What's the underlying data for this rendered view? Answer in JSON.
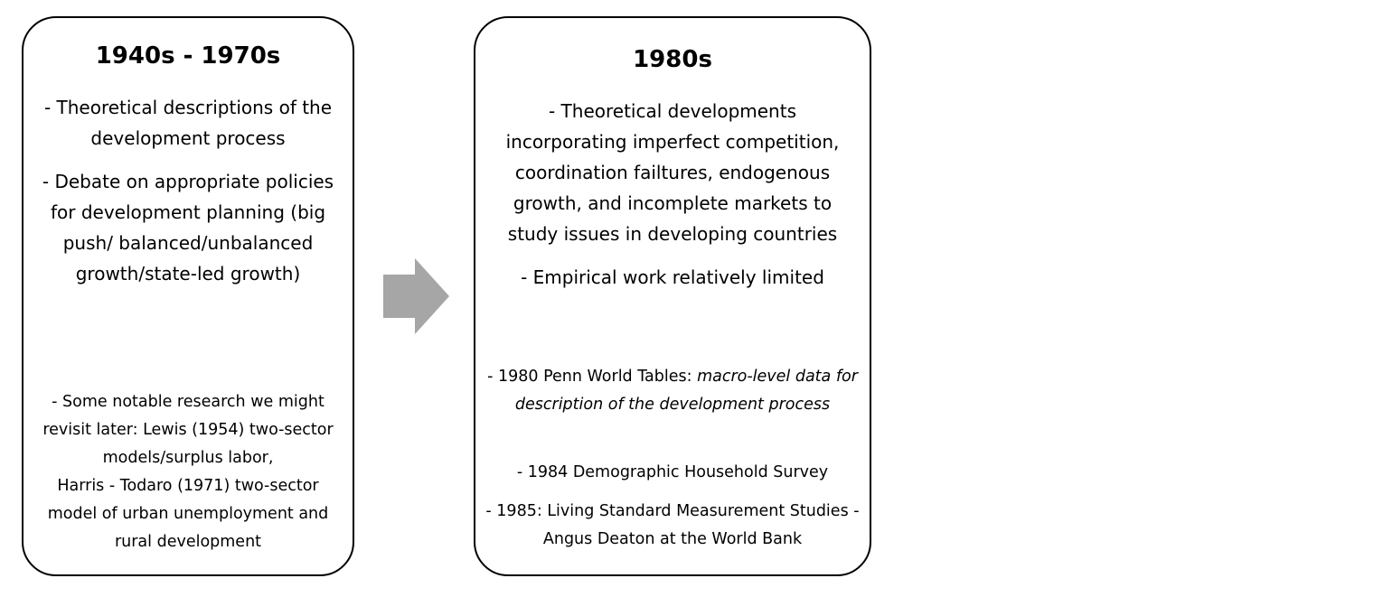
{
  "left_box": {
    "title": "1940s - 1970s",
    "point_1": "- Theoretical descriptions of the development process",
    "point_2": "- Debate on appropriate policies for development planning (big push/ balanced/unbalanced growth/state-led growth)",
    "notable_1": "- Some notable research we might revisit later: Lewis (1954) two-sector models/surplus labor,",
    "notable_2": "Harris - Todaro (1971) two-sector model of urban unemployment and rural development"
  },
  "arrow": {
    "icon": "right-arrow-icon",
    "color": "#a6a6a6"
  },
  "right_box": {
    "title": "1980s",
    "point_1": "- Theoretical developments incorporating imperfect competition, coordination failtures, endogenous growth, and incomplete markets to study issues in developing countries",
    "point_2": "- Empirical work relatively limited",
    "data_1_prefix": "- 1980 Penn World Tables: ",
    "data_1_italic": "macro-level data for description of the development process",
    "data_2": "- 1984 Demographic Household Survey",
    "data_3": "- 1985: Living Standard Measurement Studies - Angus Deaton at the World Bank"
  }
}
